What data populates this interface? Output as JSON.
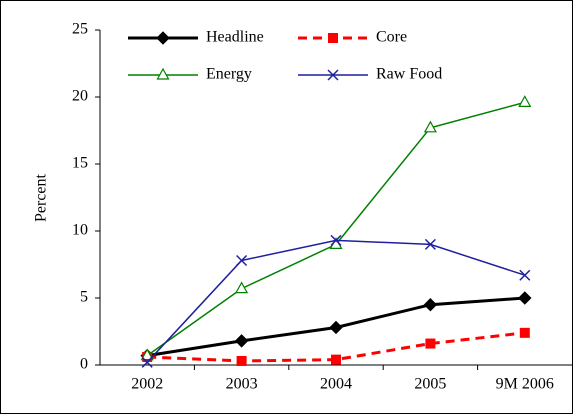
{
  "chart_data": {
    "type": "line",
    "y_label": "Percent",
    "categories": [
      "2002",
      "2003",
      "2004",
      "2005",
      "9M  2006"
    ],
    "ylim": [
      0,
      25
    ],
    "yticks": [
      0,
      5,
      10,
      15,
      20,
      25
    ],
    "legend": "upper left",
    "series": [
      {
        "name": "Headline",
        "color": "#000000",
        "marker": "diamond",
        "dash": "solid",
        "width": 3,
        "values": [
          0.7,
          1.8,
          2.8,
          4.5,
          5.0
        ]
      },
      {
        "name": "Core",
        "color": "#ff0000",
        "marker": "square",
        "dash": "dashed",
        "width": 3,
        "values": [
          0.6,
          0.3,
          0.4,
          1.6,
          2.4
        ]
      },
      {
        "name": "Energy",
        "color": "#008000",
        "marker": "triangle",
        "dash": "solid",
        "width": 1.5,
        "values": [
          0.7,
          5.7,
          9.0,
          17.7,
          19.6
        ]
      },
      {
        "name": "Raw Food",
        "color": "#1f1f9f",
        "marker": "x",
        "dash": "solid",
        "width": 1.5,
        "values": [
          0.2,
          7.8,
          9.3,
          9.0,
          6.7
        ]
      }
    ]
  }
}
